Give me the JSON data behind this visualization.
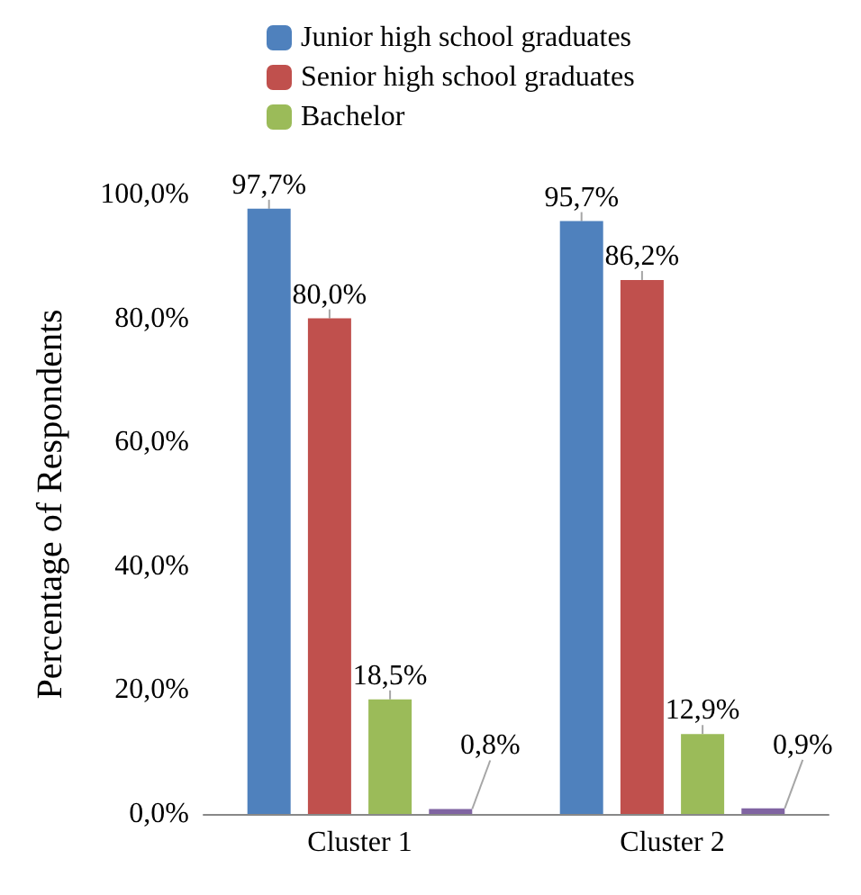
{
  "chart_data": {
    "type": "bar",
    "ylabel": "Percentage of Respondents",
    "categories": [
      "Cluster 1",
      "Cluster 2"
    ],
    "series": [
      {
        "name": "Junior high school graduates",
        "color": "#4f81bd",
        "values": [
          97.7,
          95.7
        ],
        "value_labels": [
          "97,7%",
          "95,7%"
        ]
      },
      {
        "name": "Senior high school graduates",
        "color": "#c0504d",
        "values": [
          80.0,
          86.2
        ],
        "value_labels": [
          "80,0%",
          "86,2%"
        ]
      },
      {
        "name": "Bachelor",
        "color": "#9bbb59",
        "values": [
          18.5,
          12.9
        ],
        "value_labels": [
          "18,5%",
          "12,9%"
        ]
      },
      {
        "color": "#8064a2",
        "values": [
          0.8,
          0.9
        ],
        "value_labels": [
          "0,8%",
          "0,9%"
        ]
      }
    ],
    "ylim": [
      0,
      100
    ],
    "yticks": [
      {
        "value": 0,
        "label": "0,0%"
      },
      {
        "value": 20,
        "label": "20,0%"
      },
      {
        "value": 40,
        "label": "40,0%"
      },
      {
        "value": 60,
        "label": "60,0%"
      },
      {
        "value": 80,
        "label": "80,0%"
      },
      {
        "value": 100,
        "label": "100,0%"
      }
    ],
    "grid": false,
    "legend": "top left"
  }
}
